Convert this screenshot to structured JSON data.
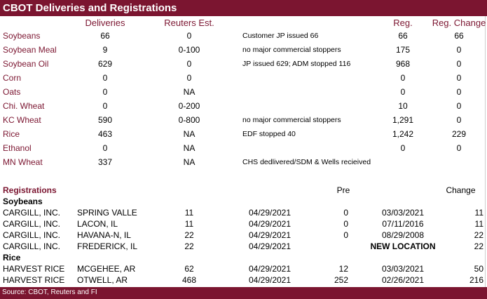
{
  "title": "CBOT Deliveries and Registrations",
  "headers": {
    "deliveries": "Deliveries",
    "reuters": "Reuters Est.",
    "reg": "Reg.",
    "reg_change": "Reg. Change"
  },
  "commodities": [
    {
      "name": "Soybeans",
      "deliveries": "66",
      "reuters": "0",
      "note": "Customer JP issued 66",
      "reg": "66",
      "change": "66"
    },
    {
      "name": "Soybean Meal",
      "deliveries": "9",
      "reuters": "0-100",
      "note": "no major commercial stoppers",
      "reg": "175",
      "change": "0"
    },
    {
      "name": "Soybean Oil",
      "deliveries": "629",
      "reuters": "0",
      "note": "JP issued 629; ADM stopped 116",
      "reg": "968",
      "change": "0"
    },
    {
      "name": "Corn",
      "deliveries": "0",
      "reuters": "0",
      "note": "",
      "reg": "0",
      "change": "0"
    },
    {
      "name": "Oats",
      "deliveries": "0",
      "reuters": "NA",
      "note": "",
      "reg": "0",
      "change": "0"
    },
    {
      "name": "Chi. Wheat",
      "deliveries": "0",
      "reuters": "0-200",
      "note": "",
      "reg": "10",
      "change": "0"
    },
    {
      "name": "KC Wheat",
      "deliveries": "590",
      "reuters": "0-800",
      "note": "no major commercial stoppers",
      "reg": "1,291",
      "change": "0"
    },
    {
      "name": "Rice",
      "deliveries": "463",
      "reuters": "NA",
      "note": "EDF stopped 40",
      "reg": "1,242",
      "change": "229"
    },
    {
      "name": "Ethanol",
      "deliveries": "0",
      "reuters": "NA",
      "note": "",
      "reg": "0",
      "change": "0"
    },
    {
      "name": "MN Wheat",
      "deliveries": "337",
      "reuters": "NA",
      "note": "CHS dedlivered/SDM & Wells recieived",
      "reg": "",
      "change": ""
    }
  ],
  "registrations": {
    "label": "Registrations",
    "pre_label": "Pre",
    "change_label": "Change",
    "groups": [
      {
        "name": "Soybeans",
        "rows": [
          {
            "company": "CARGILL, INC.",
            "location": "SPRING VALLE",
            "reg": "11",
            "date": "04/29/2021",
            "pre": "0",
            "pre_date": "03/03/2021",
            "change": "11"
          },
          {
            "company": "CARGILL, INC.",
            "location": "LACON, IL",
            "reg": "11",
            "date": "04/29/2021",
            "pre": "0",
            "pre_date": "07/11/2016",
            "change": "11"
          },
          {
            "company": "CARGILL, INC.",
            "location": "HAVANA-N, IL",
            "reg": "22",
            "date": "04/29/2021",
            "pre": "0",
            "pre_date": "08/29/2008",
            "change": "22"
          },
          {
            "company": "CARGILL, INC.",
            "location": "FREDERICK, IL",
            "reg": "22",
            "date": "04/29/2021",
            "pre": "",
            "pre_date": "NEW LOCATION",
            "change": "22"
          }
        ]
      },
      {
        "name": "Rice",
        "rows": [
          {
            "company": "HARVEST RICE",
            "location": "MCGEHEE, AR",
            "reg": "62",
            "date": "04/29/2021",
            "pre": "12",
            "pre_date": "03/03/2021",
            "change": "50"
          },
          {
            "company": "HARVEST RICE",
            "location": "OTWELL, AR",
            "reg": "468",
            "date": "04/29/2021",
            "pre": "252",
            "pre_date": "02/26/2021",
            "change": "216"
          }
        ]
      }
    ]
  },
  "footer": "Source: CBOT, Reuters and FI",
  "colors": {
    "accent": "#7b1530"
  }
}
